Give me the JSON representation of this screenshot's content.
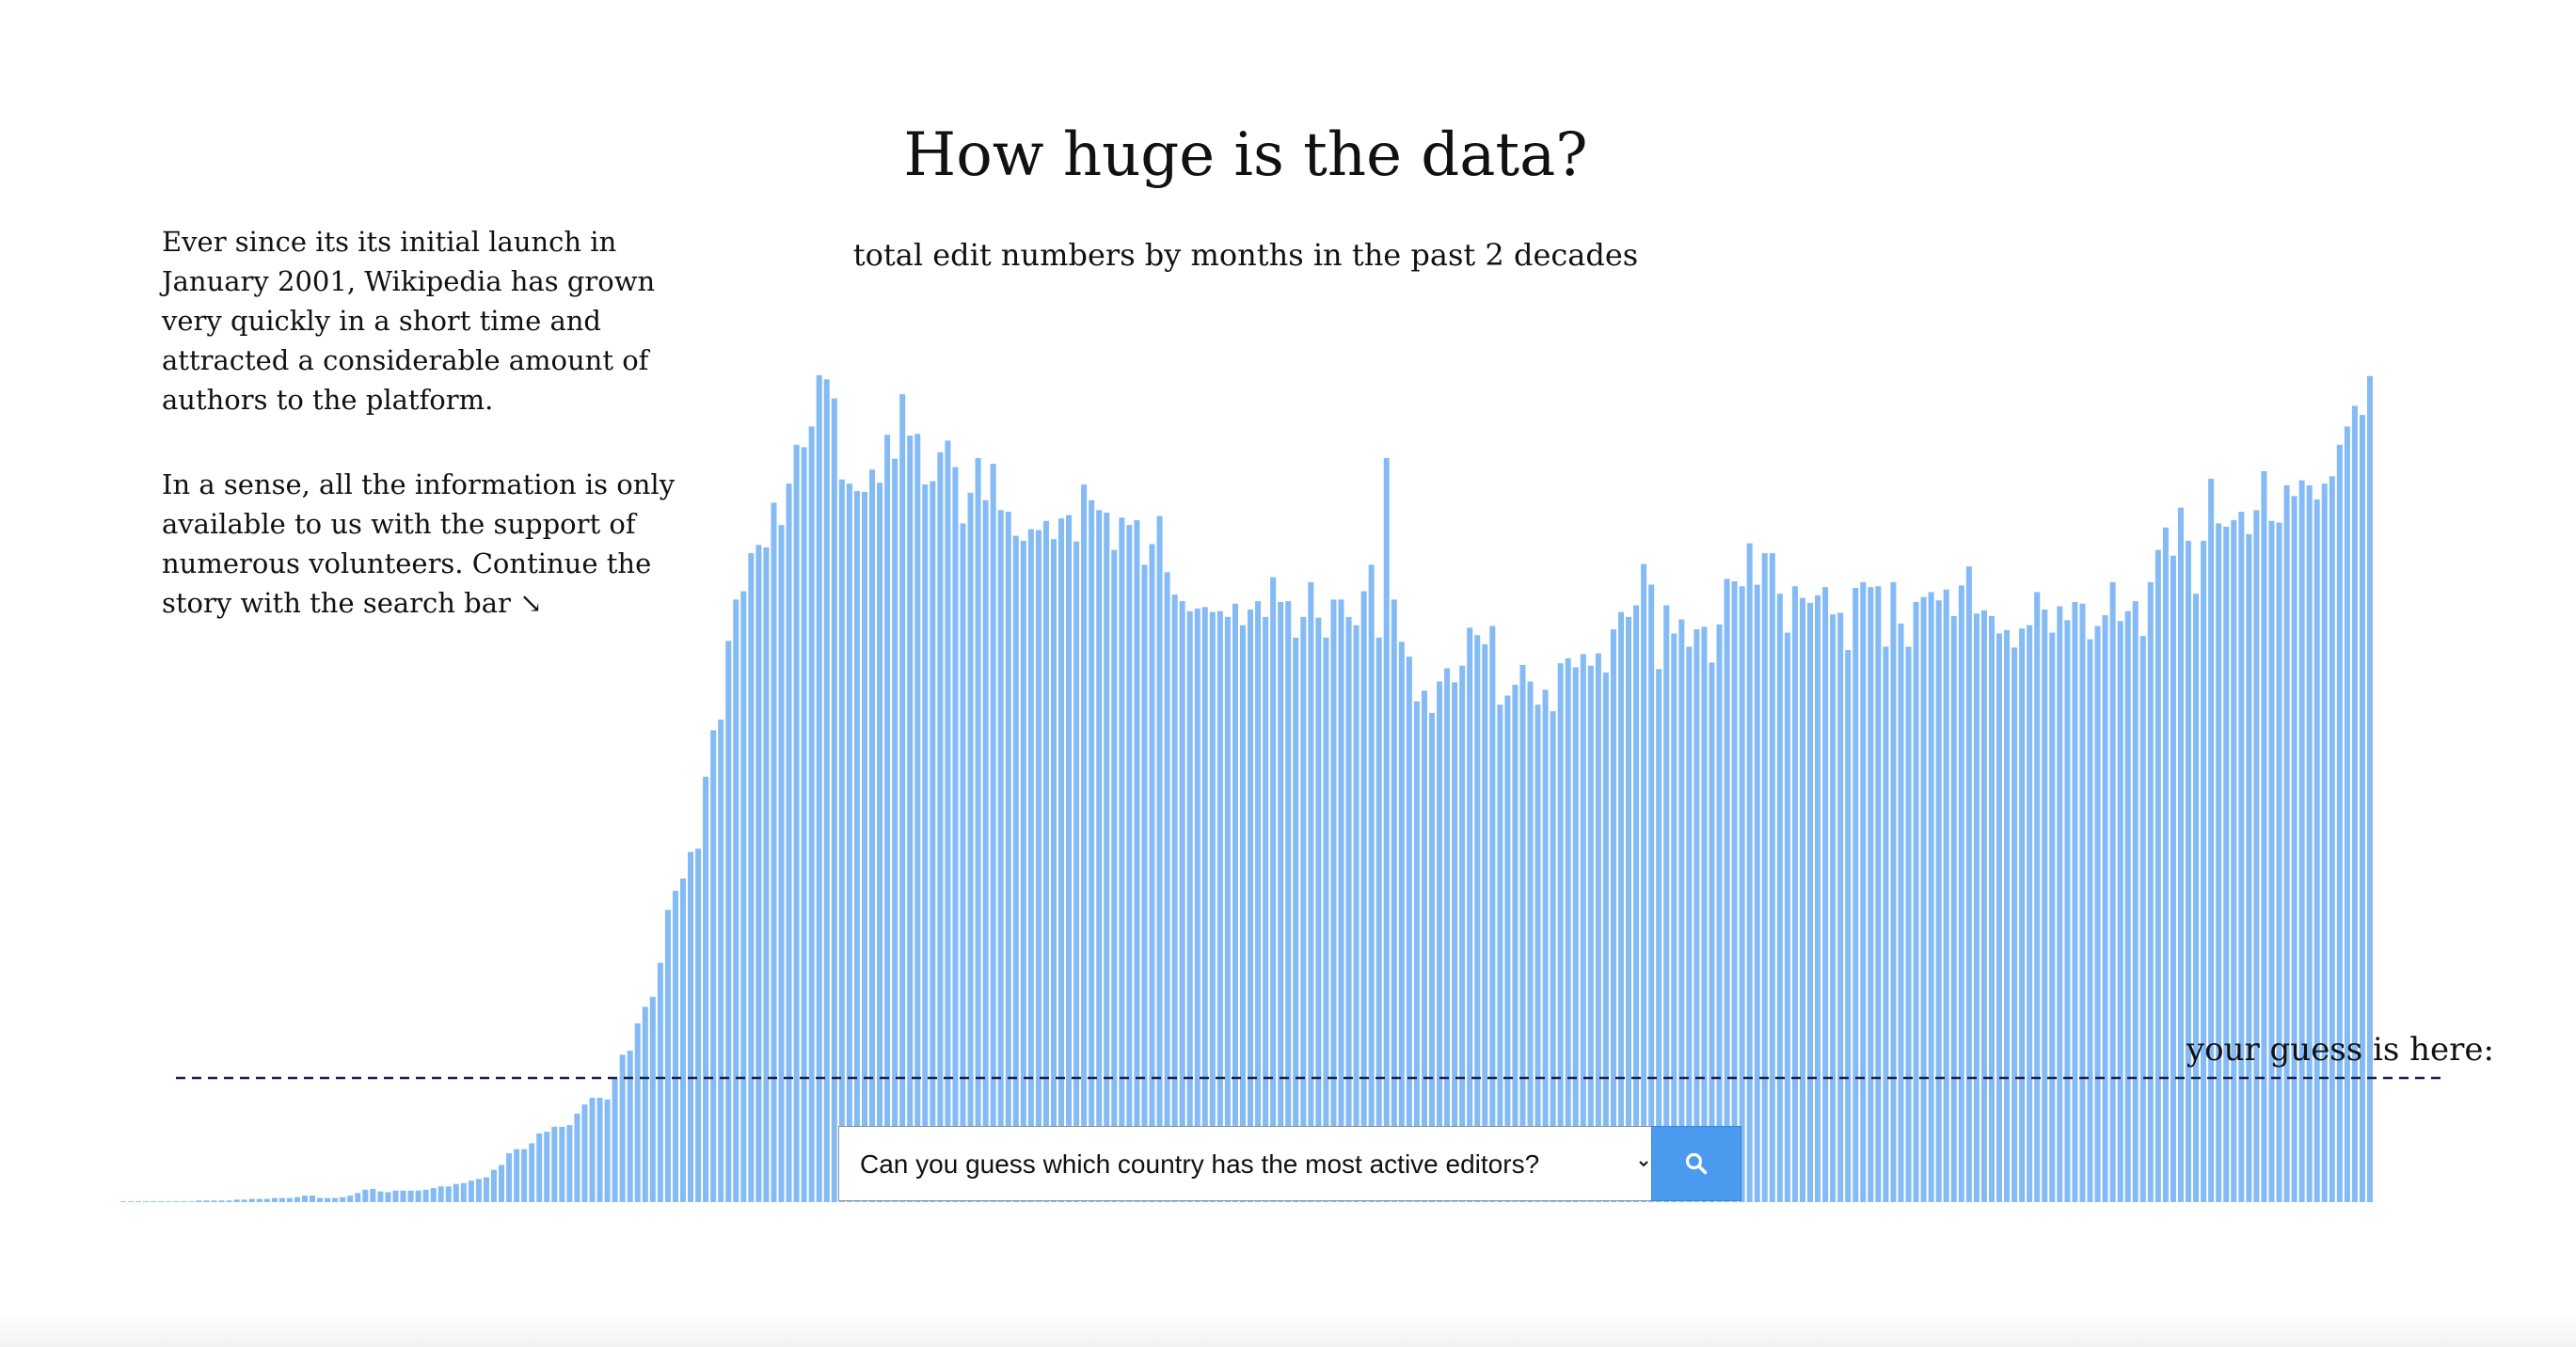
{
  "title": "How huge is the data?",
  "subtitle": "total edit numbers by months in the past 2 decades",
  "intro": {
    "p1": "Ever since its its initial launch in January 2001, Wikipedia has grown very quickly in a short time and attracted a considerable amount of authors to the platform.",
    "p2": "In a sense, all the information is only available to us with the support of numerous volunteers. Continue the story with the search bar ↘"
  },
  "guess": {
    "label": "your guess is here:",
    "level": 0.15
  },
  "search": {
    "selected": "Can you guess which country has the most active editors?",
    "button_icon": "search-icon"
  },
  "colors": {
    "bar": "#85bbf5",
    "guess_line": "#1d1d4e",
    "button": "#4a9af0"
  },
  "chart_data": {
    "type": "bar",
    "title": "",
    "xlabel": "",
    "ylabel": "",
    "ylim": [
      0,
      1
    ],
    "grid": false,
    "values": [
      0.001,
      0.001,
      0.001,
      0.001,
      0.001,
      0.001,
      0.001,
      0.001,
      0.001,
      0.001,
      0.002,
      0.002,
      0.002,
      0.002,
      0.002,
      0.003,
      0.003,
      0.004,
      0.004,
      0.004,
      0.005,
      0.005,
      0.005,
      0.006,
      0.008,
      0.008,
      0.005,
      0.005,
      0.005,
      0.006,
      0.008,
      0.011,
      0.015,
      0.016,
      0.013,
      0.012,
      0.014,
      0.014,
      0.014,
      0.014,
      0.015,
      0.017,
      0.019,
      0.019,
      0.022,
      0.023,
      0.026,
      0.028,
      0.03,
      0.039,
      0.045,
      0.059,
      0.064,
      0.064,
      0.071,
      0.083,
      0.085,
      0.091,
      0.091,
      0.093,
      0.107,
      0.118,
      0.126,
      0.126,
      0.124,
      0.149,
      0.178,
      0.183,
      0.216,
      0.236,
      0.248,
      0.289,
      0.353,
      0.376,
      0.391,
      0.423,
      0.427,
      0.514,
      0.57,
      0.583,
      0.678,
      0.728,
      0.738,
      0.784,
      0.794,
      0.791,
      0.845,
      0.818,
      0.868,
      0.915,
      0.912,
      0.937,
      0.999,
      0.994,
      0.971,
      0.873,
      0.868,
      0.859,
      0.858,
      0.885,
      0.869,
      0.927,
      0.898,
      0.976,
      0.926,
      0.928,
      0.867,
      0.871,
      0.906,
      0.92,
      0.888,
      0.82,
      0.857,
      0.899,
      0.848,
      0.892,
      0.836,
      0.834,
      0.805,
      0.799,
      0.813,
      0.812,
      0.823,
      0.801,
      0.826,
      0.83,
      0.798,
      0.867,
      0.848,
      0.836,
      0.833,
      0.788,
      0.827,
      0.818,
      0.824,
      0.77,
      0.795,
      0.829,
      0.761,
      0.734,
      0.726,
      0.714,
      0.717,
      0.719,
      0.713,
      0.714,
      0.707,
      0.723,
      0.697,
      0.716,
      0.726,
      0.707,
      0.755,
      0.725,
      0.726,
      0.682,
      0.707,
      0.749,
      0.706,
      0.682,
      0.728,
      0.728,
      0.707,
      0.697,
      0.738,
      0.77,
      0.682,
      0.899,
      0.728,
      0.677,
      0.659,
      0.605,
      0.618,
      0.591,
      0.629,
      0.645,
      0.628,
      0.648,
      0.694,
      0.685,
      0.674,
      0.696,
      0.601,
      0.612,
      0.625,
      0.649,
      0.629,
      0.601,
      0.619,
      0.593,
      0.651,
      0.657,
      0.646,
      0.662,
      0.648,
      0.663,
      0.64,
      0.692,
      0.713,
      0.707,
      0.721,
      0.771,
      0.746,
      0.644,
      0.721,
      0.687,
      0.704,
      0.671,
      0.692,
      0.695,
      0.652,
      0.698,
      0.753,
      0.75,
      0.744,
      0.796,
      0.746,
      0.784,
      0.784,
      0.735,
      0.688,
      0.744,
      0.73,
      0.724,
      0.733,
      0.743,
      0.71,
      0.712,
      0.667,
      0.742,
      0.749,
      0.743,
      0.744,
      0.671,
      0.749,
      0.699,
      0.671,
      0.725,
      0.731,
      0.737,
      0.727,
      0.74,
      0.708,
      0.745,
      0.768,
      0.711,
      0.715,
      0.708,
      0.687,
      0.691,
      0.67,
      0.693,
      0.697,
      0.737,
      0.716,
      0.688,
      0.72,
      0.703,
      0.725,
      0.723,
      0.68,
      0.696,
      0.709,
      0.749,
      0.702,
      0.714,
      0.726,
      0.684,
      0.749,
      0.788,
      0.815,
      0.781,
      0.839,
      0.799,
      0.735,
      0.799,
      0.874,
      0.82,
      0.816,
      0.824,
      0.834,
      0.807,
      0.836,
      0.883,
      0.823,
      0.821,
      0.866,
      0.853,
      0.872,
      0.866,
      0.849,
      0.868,
      0.877,
      0.915,
      0.937,
      0.962,
      0.951,
      0.998
    ]
  }
}
